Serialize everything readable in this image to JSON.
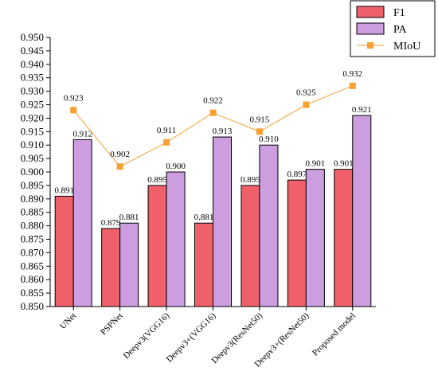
{
  "chart_data": {
    "type": "bar",
    "categories": [
      "UNet",
      "PSPNet",
      "Deepv3(VGG16)",
      "Deepv3+(VGG16)",
      "Deepv3(ResNet50)",
      "Deepv3+(ResNet50)",
      "Proposed model"
    ],
    "series": [
      {
        "name": "F1",
        "type": "bar",
        "color": "#f0606a",
        "values": [
          0.891,
          0.879,
          0.895,
          0.881,
          0.895,
          0.897,
          0.901
        ]
      },
      {
        "name": "PA",
        "type": "bar",
        "color": "#cc9ee0",
        "values": [
          0.912,
          0.881,
          0.9,
          0.913,
          0.91,
          0.901,
          0.921
        ]
      },
      {
        "name": "MIoU",
        "type": "line",
        "color": "#f5a030",
        "marker": "square",
        "values": [
          0.923,
          0.902,
          0.911,
          0.922,
          0.915,
          0.925,
          0.932
        ]
      }
    ],
    "title": "",
    "xlabel": "",
    "ylabel": "",
    "ylim": [
      0.85,
      0.95
    ],
    "yticks": [
      "0.850",
      "0.855",
      "0.860",
      "0.865",
      "0.870",
      "0.875",
      "0.880",
      "0.885",
      "0.890",
      "0.895",
      "0.900",
      "0.905",
      "0.910",
      "0.915",
      "0.920",
      "0.925",
      "0.930",
      "0.935",
      "0.940",
      "0.945",
      "0.950"
    ],
    "grid": false,
    "legend_position": "top-right",
    "data_labels": true
  }
}
